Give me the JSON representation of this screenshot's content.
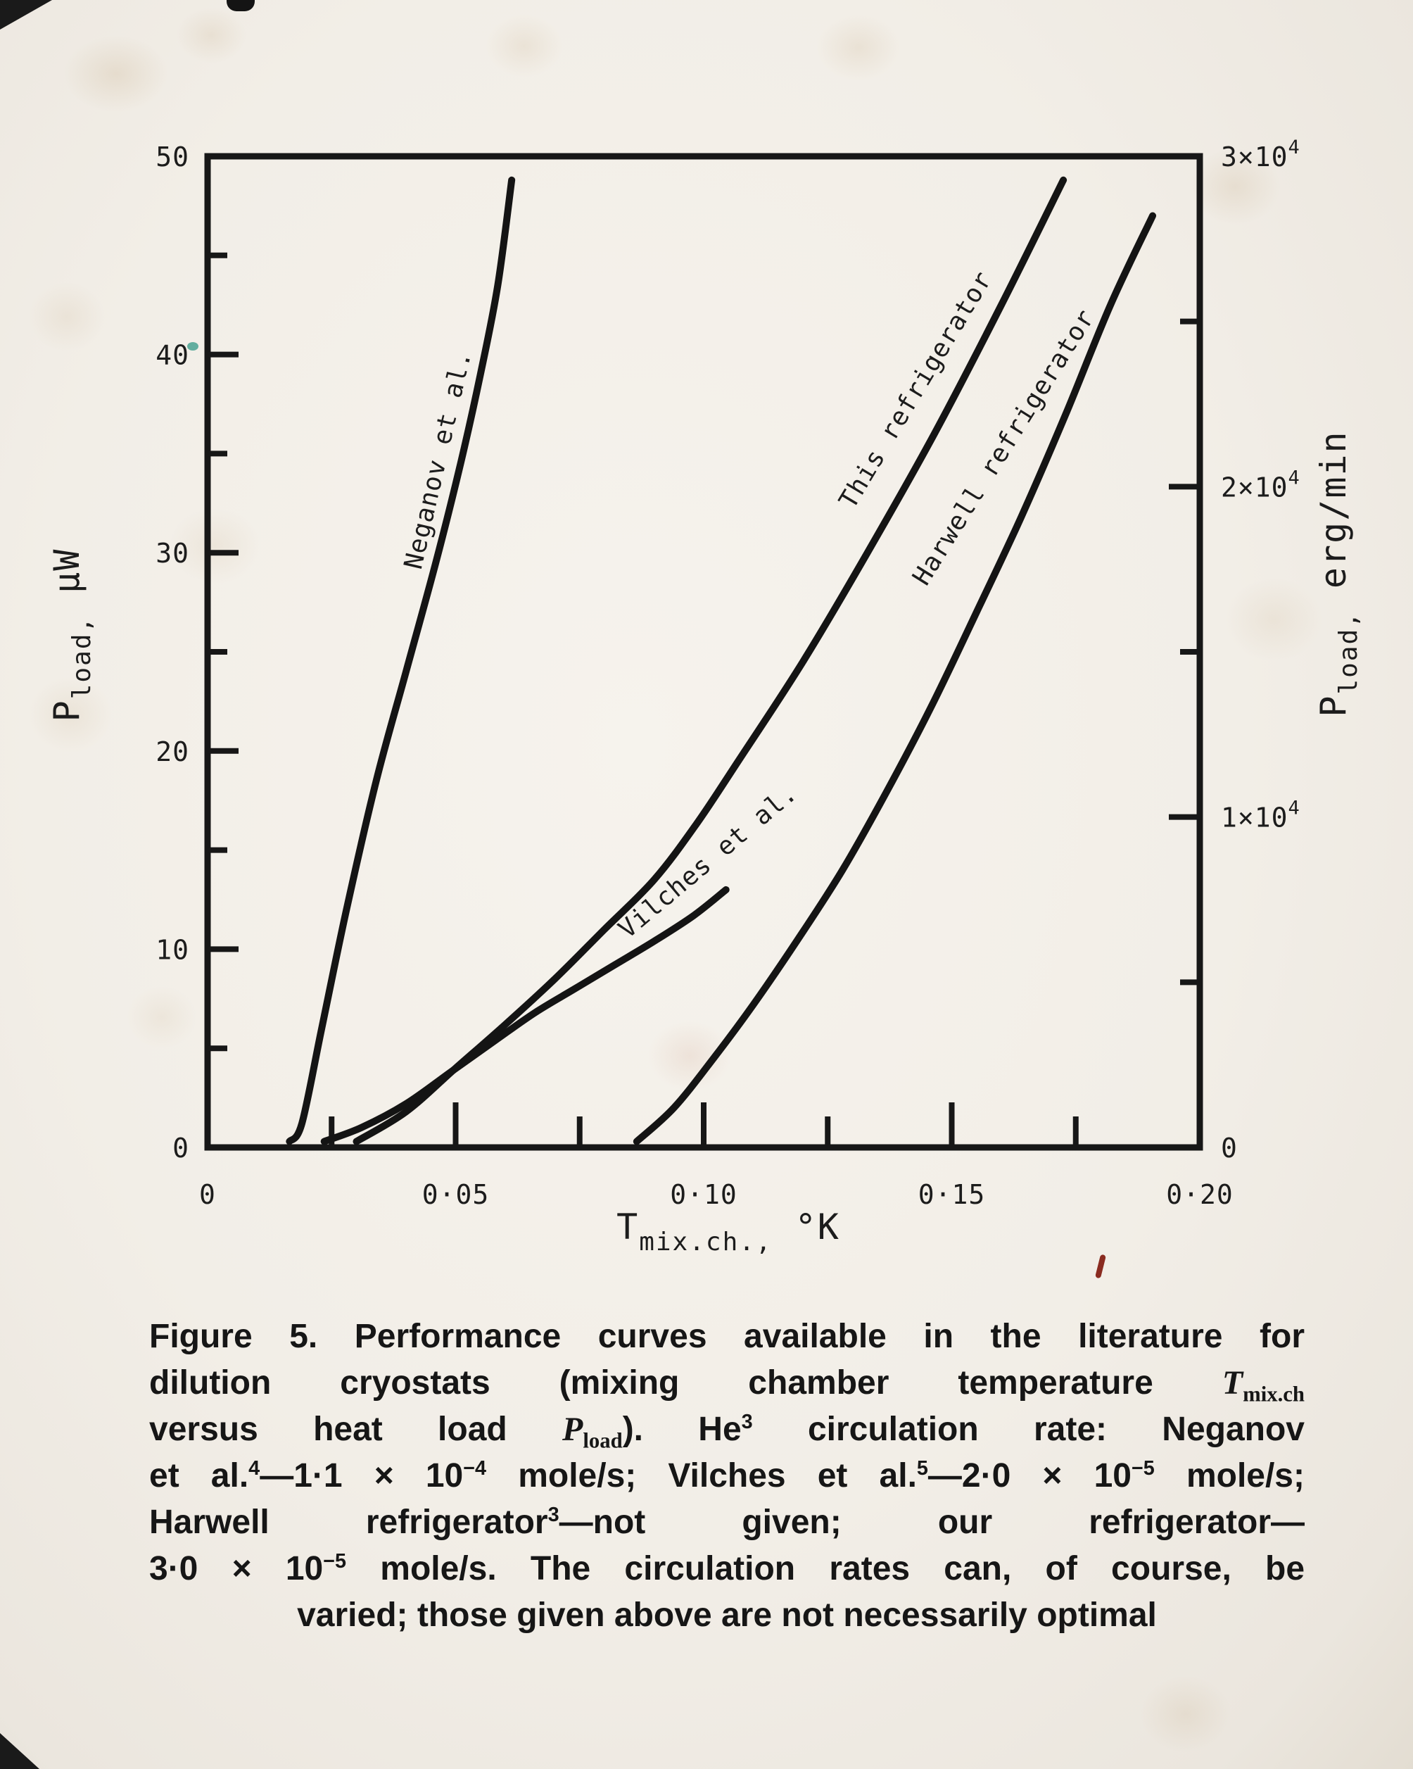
{
  "page": {
    "kind": "scanned journal figure",
    "paper_color": "#f2eee7",
    "ink_color": "#1c1c1c",
    "red_mark_color": "#8a2b20"
  },
  "chart_data": {
    "type": "line",
    "title": "",
    "grid": false,
    "legend_position": "labels along curves",
    "xlabel": {
      "prefix": "T",
      "sub": "mix.ch.,",
      "suffix": " °K"
    },
    "ylabel_left": {
      "prefix": "P",
      "sub": "load,",
      "suffix": " µW"
    },
    "ylabel_right": {
      "prefix": "P",
      "sub": "load,",
      "suffix": " erg/min"
    },
    "xlim": [
      0,
      0.2
    ],
    "ylim_left": [
      0,
      50
    ],
    "ylim_right": [
      0,
      30000
    ],
    "x_axis": {
      "major": [
        {
          "v": 0,
          "label": "0"
        },
        {
          "v": 0.05,
          "label": "0·05"
        },
        {
          "v": 0.1,
          "label": "0·10"
        },
        {
          "v": 0.15,
          "label": "0·15"
        },
        {
          "v": 0.2,
          "label": "0·20"
        }
      ],
      "minor": [
        0.025,
        0.075,
        0.125,
        0.175
      ]
    },
    "y_left": {
      "major": [
        {
          "v": 0,
          "label": "0"
        },
        {
          "v": 10,
          "label": "10"
        },
        {
          "v": 20,
          "label": "20"
        },
        {
          "v": 30,
          "label": "30"
        },
        {
          "v": 40,
          "label": "40"
        },
        {
          "v": 50,
          "label": "50"
        }
      ],
      "minor": [
        5,
        15,
        25,
        35,
        45
      ]
    },
    "y_right": {
      "major": [
        {
          "v": 0,
          "label": "0"
        },
        {
          "v": 10000,
          "mant": "1×10",
          "exp": "4"
        },
        {
          "v": 20000,
          "mant": "2×10",
          "exp": "4"
        },
        {
          "v": 30000,
          "mant": "3×10",
          "exp": "4"
        }
      ],
      "minor": [
        5000,
        15000,
        25000
      ]
    },
    "series": [
      {
        "id": "neganov",
        "label": "Neganov et al.",
        "circulation_rate": "1.1 × 10⁻⁴ mole/s",
        "points": [
          [
            0.0165,
            0.3
          ],
          [
            0.019,
            1.2
          ],
          [
            0.023,
            6
          ],
          [
            0.028,
            12
          ],
          [
            0.034,
            18.5
          ],
          [
            0.04,
            24
          ],
          [
            0.046,
            29.5
          ],
          [
            0.051,
            34.5
          ],
          [
            0.055,
            39
          ],
          [
            0.0585,
            43.5
          ],
          [
            0.0613,
            48.8
          ]
        ],
        "label_pos": {
          "T": 0.0512,
          "P": 34.6,
          "dx": -22,
          "dy": 0,
          "angle": -77
        }
      },
      {
        "id": "vilches",
        "label": "Vilches et al.",
        "circulation_rate": "2.0 × 10⁻⁵ mole/s",
        "points": [
          [
            0.0235,
            0.3
          ],
          [
            0.031,
            1.0
          ],
          [
            0.04,
            2.2
          ],
          [
            0.049,
            3.8
          ],
          [
            0.058,
            5.4
          ],
          [
            0.066,
            6.8
          ],
          [
            0.074,
            8.0
          ],
          [
            0.082,
            9.2
          ],
          [
            0.09,
            10.4
          ],
          [
            0.098,
            11.7
          ],
          [
            0.1045,
            13.0
          ]
        ],
        "label_pos": {
          "T": 0.1025,
          "P": 12.2,
          "dx": -4,
          "dy": -54,
          "angle": -40
        }
      },
      {
        "id": "this-refrigerator",
        "label": "This refrigerator",
        "circulation_rate": "3.0 × 10⁻⁵ mole/s",
        "points": [
          [
            0.03,
            0.3
          ],
          [
            0.04,
            1.8
          ],
          [
            0.05,
            4.0
          ],
          [
            0.06,
            6.2
          ],
          [
            0.07,
            8.5
          ],
          [
            0.08,
            11.0
          ],
          [
            0.09,
            13.5
          ],
          [
            0.0985,
            16.3
          ],
          [
            0.107,
            19.5
          ],
          [
            0.12,
            24.5
          ],
          [
            0.133,
            30.0
          ],
          [
            0.1465,
            36.0
          ],
          [
            0.16,
            42.5
          ],
          [
            0.1725,
            48.8
          ]
        ],
        "label_pos": {
          "T": 0.151,
          "P": 38,
          "dx": -48,
          "dy": 0,
          "angle": -59
        }
      },
      {
        "id": "harwell",
        "label": "Harwell refrigerator",
        "circulation_rate": "not given",
        "points": [
          [
            0.0865,
            0.3
          ],
          [
            0.094,
            2
          ],
          [
            0.102,
            4.5
          ],
          [
            0.11,
            7.2
          ],
          [
            0.119,
            10.5
          ],
          [
            0.128,
            14
          ],
          [
            0.137,
            18
          ],
          [
            0.146,
            22.3
          ],
          [
            0.155,
            27
          ],
          [
            0.164,
            31.8
          ],
          [
            0.173,
            37
          ],
          [
            0.182,
            42.5
          ],
          [
            0.1905,
            47
          ]
        ],
        "label_pos": {
          "T": 0.17,
          "P": 35.1,
          "dx": -57,
          "dy": 0,
          "angle": -58
        }
      }
    ]
  },
  "caption": {
    "lines": [
      [
        {
          "t": "Figure 5. Performance curves available in the literature for"
        }
      ],
      [
        {
          "t": "dilution cryostats (mixing chamber temperature "
        },
        {
          "t": "T",
          "s": "serI"
        },
        {
          "t": "mix.ch",
          "s": "serSub"
        }
      ],
      [
        {
          "t": "versus heat load "
        },
        {
          "t": "P",
          "s": "serI"
        },
        {
          "t": "load",
          "s": "serSub"
        },
        {
          "t": "). He"
        },
        {
          "t": "3",
          "s": "sup"
        },
        {
          "t": " circulation rate: Neganov"
        }
      ],
      [
        {
          "t": "et al."
        },
        {
          "t": "4",
          "s": "sup"
        },
        {
          "t": "—1·1 × 10"
        },
        {
          "t": "−4",
          "s": "sup"
        },
        {
          "t": " mole/s; Vilches et al."
        },
        {
          "t": "5",
          "s": "sup"
        },
        {
          "t": "—2·0 × 10"
        },
        {
          "t": "−5",
          "s": "sup"
        },
        {
          "t": " mole/s;"
        }
      ],
      [
        {
          "t": "Harwell refrigerator"
        },
        {
          "t": "3",
          "s": "sup"
        },
        {
          "t": "—not given; our refrigerator—"
        }
      ],
      [
        {
          "t": "3·0 × 10"
        },
        {
          "t": "−5",
          "s": "sup"
        },
        {
          "t": " mole/s. The circulation rates can, of course, be"
        }
      ],
      [
        {
          "t": "varied; those given above are not necessarily optimal"
        }
      ]
    ]
  }
}
